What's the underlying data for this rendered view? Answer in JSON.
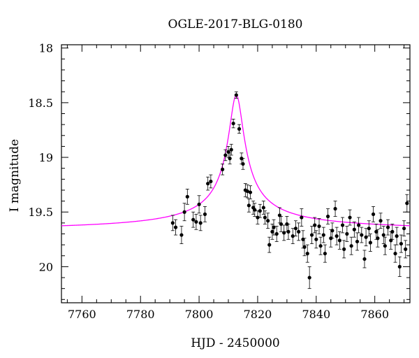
{
  "chart_data": {
    "type": "scatter",
    "title": "OGLE-2017-BLG-0180",
    "xlabel": "HJD - 2450000",
    "ylabel": "I magnitude",
    "xlim": [
      7753,
      7872
    ],
    "ylim": [
      20.33,
      17.97
    ],
    "y_inverted": true,
    "grid": false,
    "xticks": [
      7760,
      7780,
      7800,
      7820,
      7840,
      7860
    ],
    "yticks": [
      18,
      18.5,
      19,
      19.5,
      20
    ],
    "xtick_labels": [
      "7760",
      "7780",
      "7800",
      "7820",
      "7840",
      "7860"
    ],
    "ytick_labels": [
      "18",
      "18.5",
      "19",
      "19.5",
      "20"
    ],
    "model": {
      "name": "",
      "color": "#ff00ff",
      "t0": 7812.7,
      "baseline": 19.68,
      "peak": 18.43,
      "width": 2.6
    },
    "series": [
      {
        "name": "",
        "color": "#000000",
        "points": [
          [
            7791,
            19.6,
            0.07
          ],
          [
            7792,
            19.64,
            0.07
          ],
          [
            7794,
            19.71,
            0.08
          ],
          [
            7795,
            19.5,
            0.08
          ],
          [
            7796,
            19.36,
            0.07
          ],
          [
            7798,
            19.57,
            0.07
          ],
          [
            7799,
            19.59,
            0.07
          ],
          [
            7800,
            19.43,
            0.08
          ],
          [
            7800.5,
            19.6,
            0.07
          ],
          [
            7802,
            19.52,
            0.07
          ],
          [
            7803,
            19.24,
            0.06
          ],
          [
            7804,
            19.22,
            0.06
          ],
          [
            7808,
            19.11,
            0.05
          ],
          [
            7809,
            18.98,
            0.05
          ],
          [
            7810,
            18.95,
            0.05
          ],
          [
            7810.5,
            19.01,
            0.05
          ],
          [
            7811,
            18.93,
            0.05
          ],
          [
            7811.7,
            18.69,
            0.04
          ],
          [
            7812.7,
            18.43,
            0.03
          ],
          [
            7813.7,
            18.74,
            0.04
          ],
          [
            7814.5,
            19.01,
            0.05
          ],
          [
            7815,
            19.06,
            0.05
          ],
          [
            7815.8,
            19.3,
            0.06
          ],
          [
            7816.5,
            19.31,
            0.06
          ],
          [
            7817,
            19.44,
            0.06
          ],
          [
            7817.5,
            19.32,
            0.06
          ],
          [
            7818.5,
            19.46,
            0.06
          ],
          [
            7819,
            19.48,
            0.06
          ],
          [
            7820,
            19.55,
            0.06
          ],
          [
            7820.8,
            19.49,
            0.06
          ],
          [
            7822,
            19.46,
            0.06
          ],
          [
            7822.5,
            19.55,
            0.06
          ],
          [
            7823.5,
            19.58,
            0.07
          ],
          [
            7824,
            19.8,
            0.07
          ],
          [
            7825,
            19.68,
            0.07
          ],
          [
            7825.5,
            19.64,
            0.07
          ],
          [
            7826.5,
            19.7,
            0.07
          ],
          [
            7827.5,
            19.53,
            0.07
          ],
          [
            7828,
            19.61,
            0.07
          ],
          [
            7829,
            19.69,
            0.07
          ],
          [
            7830,
            19.61,
            0.07
          ],
          [
            7830.5,
            19.68,
            0.07
          ],
          [
            7832,
            19.72,
            0.07
          ],
          [
            7833,
            19.65,
            0.07
          ],
          [
            7834,
            19.68,
            0.08
          ],
          [
            7835,
            19.55,
            0.08
          ],
          [
            7835.5,
            19.75,
            0.08
          ],
          [
            7836,
            19.82,
            0.08
          ],
          [
            7837,
            19.88,
            0.08
          ],
          [
            7837.7,
            20.1,
            0.1
          ],
          [
            7838.5,
            19.71,
            0.08
          ],
          [
            7839.5,
            19.62,
            0.07
          ],
          [
            7840,
            19.75,
            0.08
          ],
          [
            7841,
            19.63,
            0.07
          ],
          [
            7841.5,
            19.81,
            0.08
          ],
          [
            7842.5,
            19.71,
            0.07
          ],
          [
            7843,
            19.88,
            0.08
          ],
          [
            7844,
            19.54,
            0.07
          ],
          [
            7845,
            19.74,
            0.08
          ],
          [
            7845.5,
            19.67,
            0.07
          ],
          [
            7846.5,
            19.47,
            0.07
          ],
          [
            7847,
            19.72,
            0.08
          ],
          [
            7848,
            19.76,
            0.08
          ],
          [
            7849,
            19.62,
            0.07
          ],
          [
            7849.5,
            19.84,
            0.08
          ],
          [
            7850.5,
            19.7,
            0.07
          ],
          [
            7851.5,
            19.55,
            0.07
          ],
          [
            7852,
            19.81,
            0.08
          ],
          [
            7853,
            19.66,
            0.07
          ],
          [
            7854,
            19.77,
            0.08
          ],
          [
            7854.5,
            19.62,
            0.07
          ],
          [
            7855.5,
            19.71,
            0.07
          ],
          [
            7856.5,
            19.93,
            0.08
          ],
          [
            7857,
            19.73,
            0.08
          ],
          [
            7858,
            19.65,
            0.07
          ],
          [
            7858.5,
            19.78,
            0.08
          ],
          [
            7859.5,
            19.52,
            0.07
          ],
          [
            7860.5,
            19.68,
            0.07
          ],
          [
            7861,
            19.74,
            0.08
          ],
          [
            7862,
            19.58,
            0.07
          ],
          [
            7863,
            19.71,
            0.08
          ],
          [
            7863.5,
            19.81,
            0.08
          ],
          [
            7864.5,
            19.64,
            0.07
          ],
          [
            7865.5,
            19.76,
            0.08
          ],
          [
            7866,
            19.68,
            0.07
          ],
          [
            7867,
            19.88,
            0.08
          ],
          [
            7867.5,
            19.72,
            0.08
          ],
          [
            7868.5,
            20.0,
            0.09
          ],
          [
            7869,
            19.79,
            0.08
          ],
          [
            7870,
            19.65,
            0.07
          ],
          [
            7870.5,
            19.84,
            0.08
          ],
          [
            7871,
            19.42,
            0.08
          ]
        ]
      }
    ]
  }
}
